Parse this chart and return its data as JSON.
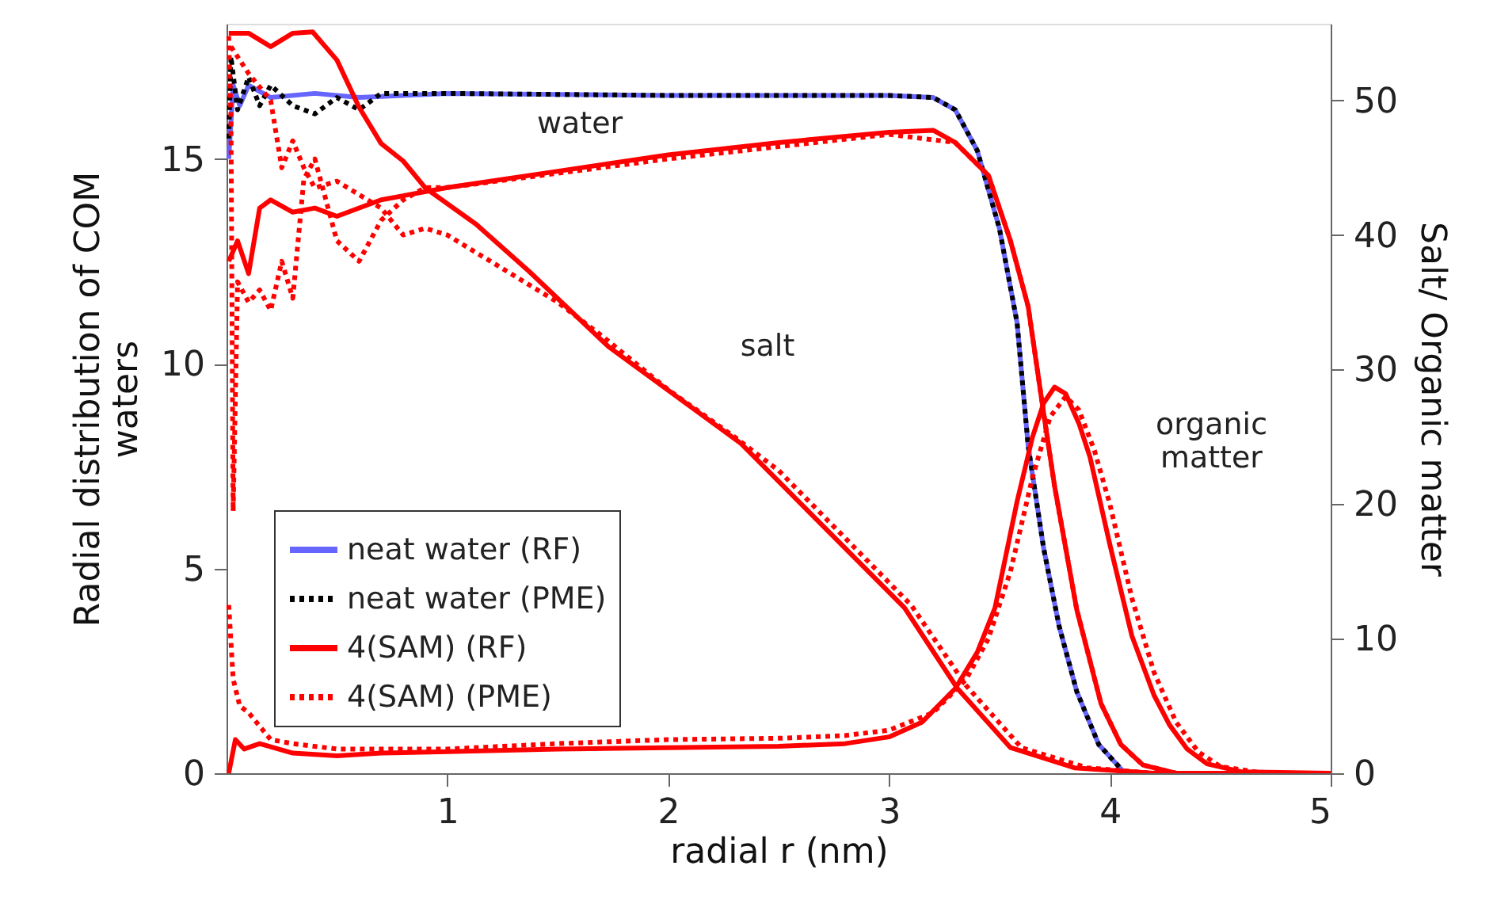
{
  "chart_data": {
    "type": "line",
    "xlabel": "radial r (nm)",
    "ylabel": "Radial distribution of COM waters",
    "y2label": "Salt/ Organic matter",
    "xlim": [
      0,
      5
    ],
    "xticks": [
      1,
      2,
      3,
      4,
      5
    ],
    "ylim": [
      0,
      18.3
    ],
    "yticks": [
      0,
      5,
      10,
      15
    ],
    "y2lim": [
      0,
      55.7
    ],
    "y2ticks": [
      0,
      10,
      20,
      30,
      40,
      50
    ],
    "grid": false,
    "legend": "bottom left",
    "marker": "none",
    "annotations": [
      "water",
      "salt",
      "organic matter"
    ],
    "series": [
      {
        "name": "neat water (RF)",
        "color": "#6666ff",
        "line_style": "solid",
        "x": [
          0.01,
          0.03,
          0.06,
          0.1,
          0.2,
          0.4,
          0.6,
          1,
          2,
          3,
          3.2,
          3.3,
          3.4,
          3.5,
          3.58,
          3.63,
          3.7,
          3.77,
          3.85,
          3.95,
          4.06,
          4.15
        ],
        "values": [
          15,
          16.8,
          16.3,
          16.8,
          16.5,
          16.6,
          16.5,
          16.6,
          16.55,
          16.55,
          16.5,
          16.2,
          15.2,
          13.3,
          11,
          8,
          5.5,
          3.6,
          2,
          0.7,
          0.05,
          0
        ]
      },
      {
        "name": "neat water (PME)",
        "color": "#000000",
        "line_style": "dotted",
        "x": [
          0.01,
          0.02,
          0.05,
          0.1,
          0.15,
          0.2,
          0.3,
          0.4,
          0.5,
          0.6,
          0.7,
          1,
          2,
          3,
          3.2,
          3.3,
          3.4,
          3.5,
          3.58,
          3.63,
          3.7,
          3.77,
          3.85,
          3.95,
          4.06,
          4.15
        ],
        "values": [
          15.5,
          17.5,
          16.2,
          17,
          16.3,
          16.8,
          16.3,
          16.1,
          16.5,
          16.2,
          16.6,
          16.6,
          16.55,
          16.55,
          16.5,
          16.2,
          15.2,
          13.3,
          11,
          8,
          5.5,
          3.6,
          2,
          0.7,
          0.05,
          0
        ]
      },
      {
        "name": "4(SAM) (RF)",
        "color": "#ff0000",
        "line_style": "solid",
        "x": [
          0.01,
          0.05,
          0.1,
          0.15,
          0.2,
          0.3,
          0.4,
          0.5,
          0.7,
          1,
          1.5,
          2,
          2.5,
          3,
          3.2,
          3.3,
          3.45,
          3.55,
          3.63,
          3.7,
          3.75,
          3.85,
          3.96,
          4.05,
          4.15,
          4.3,
          5
        ],
        "values": [
          12.5,
          13,
          12.2,
          13.8,
          14,
          13.7,
          13.8,
          13.6,
          14,
          14.3,
          14.7,
          15.1,
          15.4,
          15.65,
          15.7,
          15.4,
          14.6,
          13,
          11.4,
          8.8,
          7,
          4,
          1.7,
          0.7,
          0.2,
          0,
          0
        ]
      },
      {
        "name": "4(SAM) (PME)",
        "color": "#ff0000",
        "line_style": "dotted",
        "x": [
          0.01,
          0.02,
          0.03,
          0.05,
          0.1,
          0.15,
          0.2,
          0.25,
          0.3,
          0.35,
          0.4,
          0.45,
          0.5,
          0.6,
          0.7,
          0.8,
          0.9,
          1,
          2,
          3,
          3.3,
          3.45,
          3.55,
          3.63,
          3.7,
          3.75,
          3.85,
          3.96,
          4.05,
          4.15,
          4.3,
          5
        ],
        "values": [
          18,
          16,
          6.4,
          12,
          11.5,
          11.8,
          11.3,
          12.5,
          11.6,
          14.5,
          15,
          14,
          13,
          12.5,
          13.5,
          14,
          14.3,
          14.3,
          15,
          15.6,
          15.4,
          14.6,
          13,
          11.4,
          8.8,
          7,
          4,
          1.7,
          0.7,
          0.2,
          0,
          0
        ]
      },
      {
        "color": "#ff0000",
        "line_style": "solid",
        "axis": "y2",
        "x": [
          0.01,
          0.1,
          0.2,
          0.3,
          0.39,
          0.5,
          0.6,
          0.7,
          0.8,
          0.9,
          1.13,
          1.37,
          1.73,
          2.33,
          2.76,
          3.07,
          3.31,
          3.55,
          3.84,
          4.2,
          5
        ],
        "values": [
          55,
          55,
          54,
          55,
          55.1,
          53,
          49.5,
          46.8,
          45.5,
          43.5,
          40.8,
          37.3,
          31.7,
          24.5,
          17.4,
          12.3,
          6.3,
          1.9,
          0.4,
          0,
          0
        ]
      },
      {
        "color": "#ff0000",
        "line_style": "dotted",
        "axis": "y2",
        "x": [
          0.02,
          0.1,
          0.2,
          0.25,
          0.3,
          0.35,
          0.4,
          0.5,
          0.6,
          0.7,
          0.8,
          0.9,
          1,
          1.2,
          1.5,
          1.7,
          2,
          2.3,
          2.5,
          2.8,
          3.1,
          3.35,
          3.6,
          3.9,
          4.2,
          5
        ],
        "values": [
          54,
          52,
          50,
          45,
          47,
          45,
          43.5,
          44,
          43,
          42,
          40,
          40.5,
          40,
          38,
          35,
          32.5,
          28.5,
          25,
          22.5,
          17.5,
          12.5,
          6.5,
          1.9,
          0.4,
          0,
          0
        ]
      },
      {
        "color": "#ff0000",
        "line_style": "solid",
        "axis": "y2",
        "x": [
          0.01,
          0.04,
          0.08,
          0.15,
          0.3,
          0.5,
          0.7,
          1,
          1.5,
          2,
          2.5,
          2.8,
          3,
          3.15,
          3.3,
          3.4,
          3.48,
          3.58,
          3.65,
          3.7,
          3.75,
          3.8,
          3.86,
          3.91,
          4,
          4.1,
          4.2,
          4.27,
          4.35,
          4.44,
          4.6,
          5
        ],
        "values": [
          0,
          2.5,
          1.8,
          2.2,
          1.5,
          1.3,
          1.5,
          1.6,
          1.8,
          1.9,
          2,
          2.2,
          2.7,
          3.8,
          6.3,
          9,
          12.3,
          20.2,
          25,
          27.5,
          28.7,
          28.2,
          26,
          23.5,
          17,
          10.2,
          5.8,
          3.6,
          1.8,
          0.7,
          0.1,
          0
        ]
      },
      {
        "color": "#ff0000",
        "line_style": "dotted",
        "axis": "y2",
        "x": [
          0.01,
          0.03,
          0.06,
          0.1,
          0.15,
          0.2,
          0.3,
          0.5,
          1,
          1.5,
          2,
          2.5,
          2.8,
          3,
          3.2,
          3.35,
          3.45,
          3.55,
          3.65,
          3.73,
          3.8,
          3.86,
          3.93,
          4,
          4.1,
          4.2,
          4.3,
          4.4,
          4.5,
          4.7,
          5
        ],
        "values": [
          12.5,
          7,
          5,
          4.5,
          3.5,
          2.5,
          2.2,
          1.8,
          1.8,
          2.2,
          2.5,
          2.6,
          2.8,
          3.2,
          4.5,
          7,
          10,
          15,
          22,
          26.5,
          28,
          27,
          24,
          20,
          13,
          7.5,
          3.8,
          1.6,
          0.5,
          0,
          0
        ]
      }
    ]
  }
}
